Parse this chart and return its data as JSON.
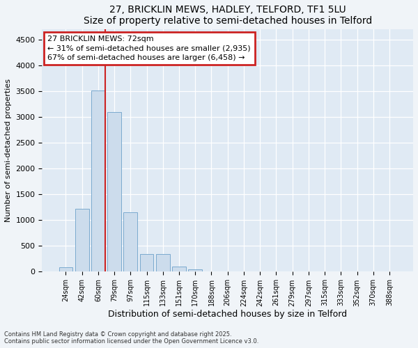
{
  "title1": "27, BRICKLIN MEWS, HADLEY, TELFORD, TF1 5LU",
  "title2": "Size of property relative to semi-detached houses in Telford",
  "xlabel": "Distribution of semi-detached houses by size in Telford",
  "ylabel": "Number of semi-detached properties",
  "categories": [
    "24sqm",
    "42sqm",
    "60sqm",
    "79sqm",
    "97sqm",
    "115sqm",
    "133sqm",
    "151sqm",
    "170sqm",
    "188sqm",
    "206sqm",
    "224sqm",
    "242sqm",
    "261sqm",
    "279sqm",
    "297sqm",
    "315sqm",
    "333sqm",
    "352sqm",
    "370sqm",
    "388sqm"
  ],
  "values": [
    90,
    1220,
    3520,
    3100,
    1150,
    340,
    340,
    100,
    50,
    10,
    3,
    1,
    0,
    0,
    0,
    0,
    0,
    0,
    0,
    0,
    0
  ],
  "bar_color": "#ccdcec",
  "bar_edge_color": "#7baacf",
  "annotation_title": "27 BRICKLIN MEWS: 72sqm",
  "annotation_line1": "← 31% of semi-detached houses are smaller (2,935)",
  "annotation_line2": "67% of semi-detached houses are larger (6,458) →",
  "vline_color": "#cc2222",
  "annotation_box_edge": "#cc2222",
  "footer1": "Contains HM Land Registry data © Crown copyright and database right 2025.",
  "footer2": "Contains public sector information licensed under the Open Government Licence v3.0.",
  "ylim": [
    0,
    4700
  ],
  "yticks": [
    0,
    500,
    1000,
    1500,
    2000,
    2500,
    3000,
    3500,
    4000,
    4500
  ],
  "bg_color": "#f0f4f8",
  "plot_bg_color": "#e0eaf4",
  "vline_x": 2.42
}
